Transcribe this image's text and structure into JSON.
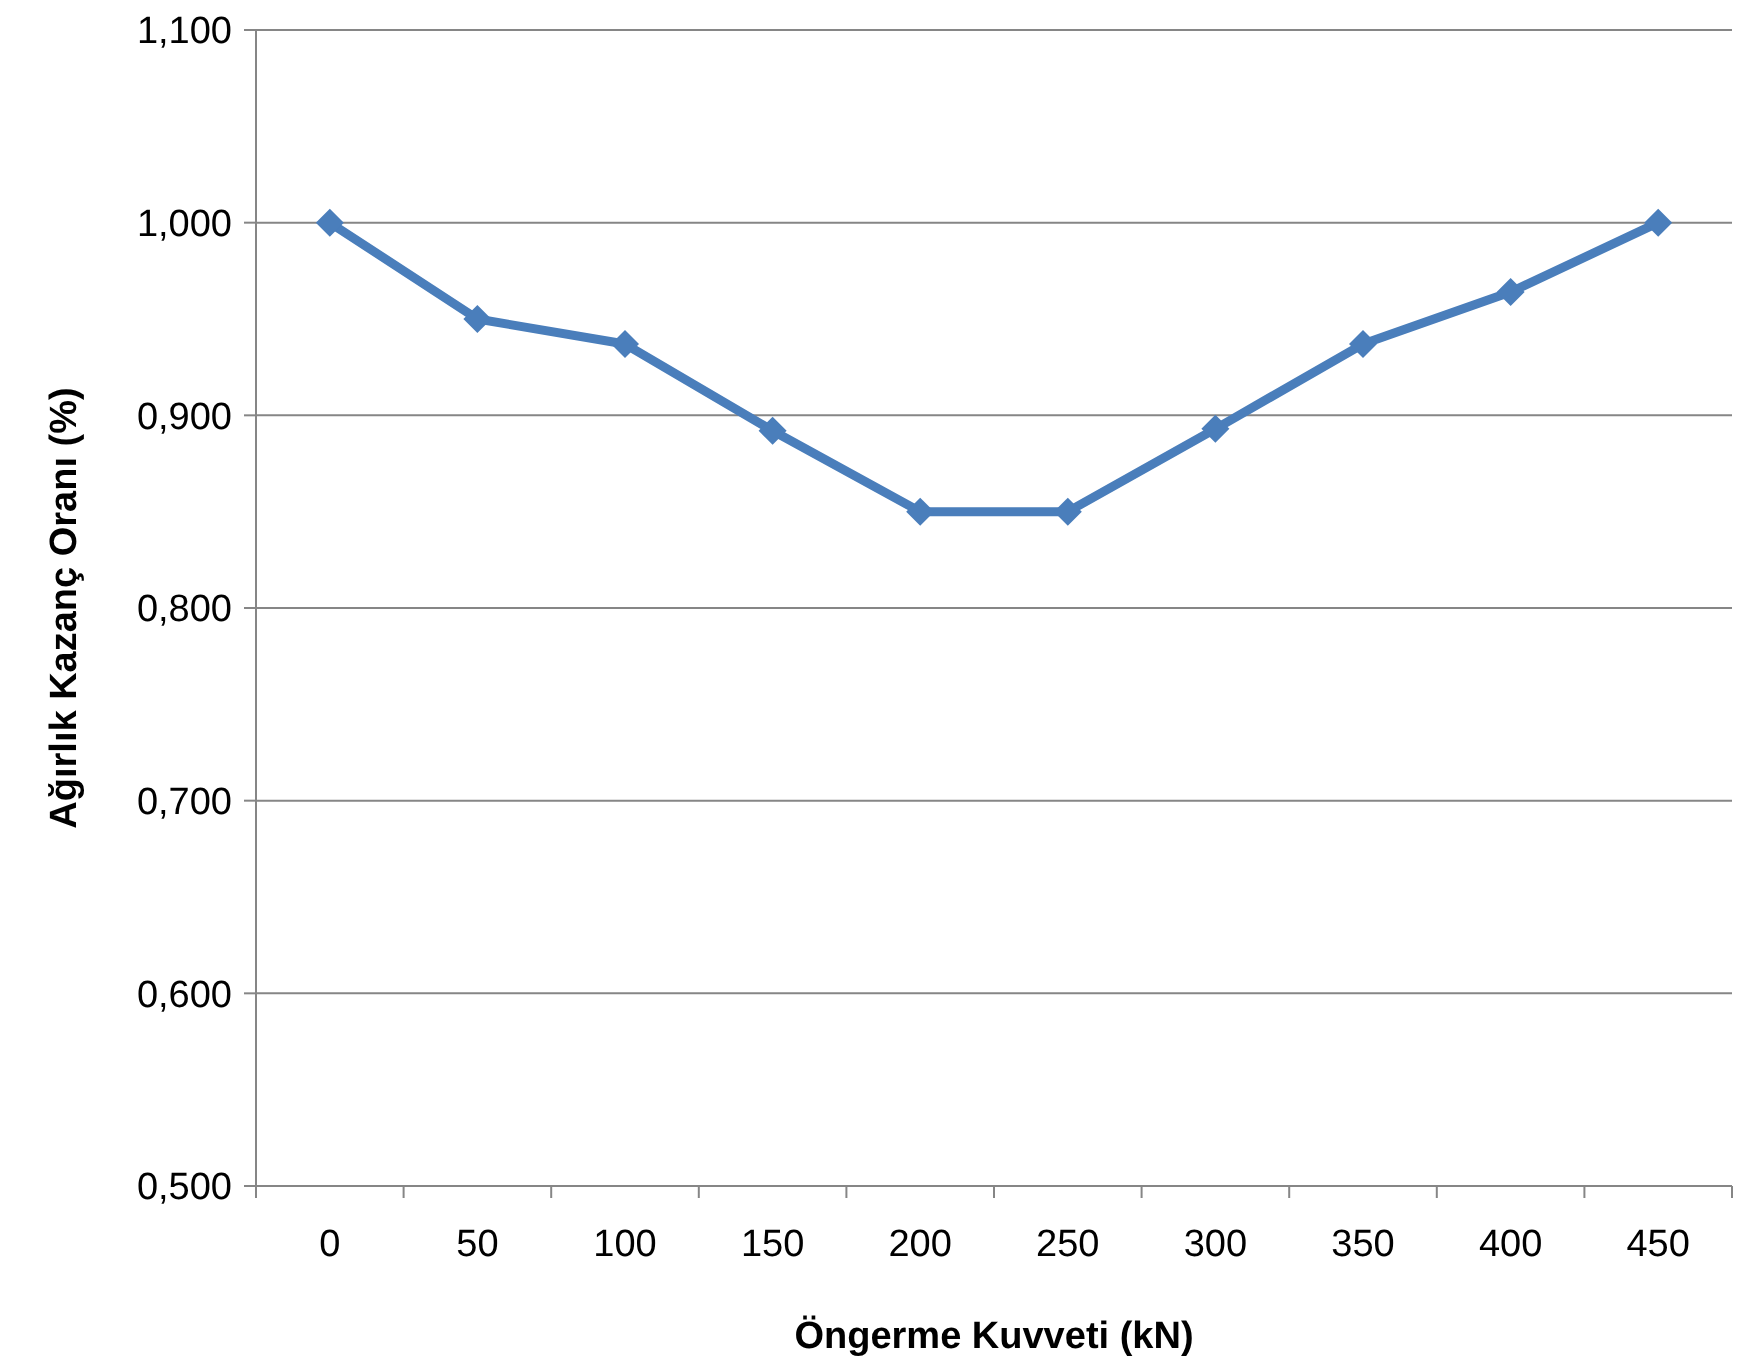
{
  "chart_data": {
    "type": "line",
    "xlabel": "Öngerme Kuvveti (kN)",
    "ylabel": "Ağırlık Kazanç Oranı (%)",
    "categories": [
      "0",
      "50",
      "100",
      "150",
      "200",
      "250",
      "300",
      "350",
      "400",
      "450"
    ],
    "series": [
      {
        "color": "#4a7ebb",
        "values": [
          1.0,
          0.95,
          0.937,
          0.892,
          0.85,
          0.85,
          0.893,
          0.937,
          0.964,
          1.0
        ]
      }
    ],
    "ylim": [
      0.5,
      1.1
    ],
    "yticks": [
      {
        "value": 0.5,
        "label": "0,500"
      },
      {
        "value": 0.6,
        "label": "0,600"
      },
      {
        "value": 0.7,
        "label": "0,700"
      },
      {
        "value": 0.8,
        "label": "0,800"
      },
      {
        "value": 0.9,
        "label": "0,900"
      },
      {
        "value": 1.0,
        "label": "1,000"
      },
      {
        "value": 1.1,
        "label": "1,100"
      }
    ],
    "grid": "y",
    "marker": "diamond",
    "line_style": "solid"
  }
}
